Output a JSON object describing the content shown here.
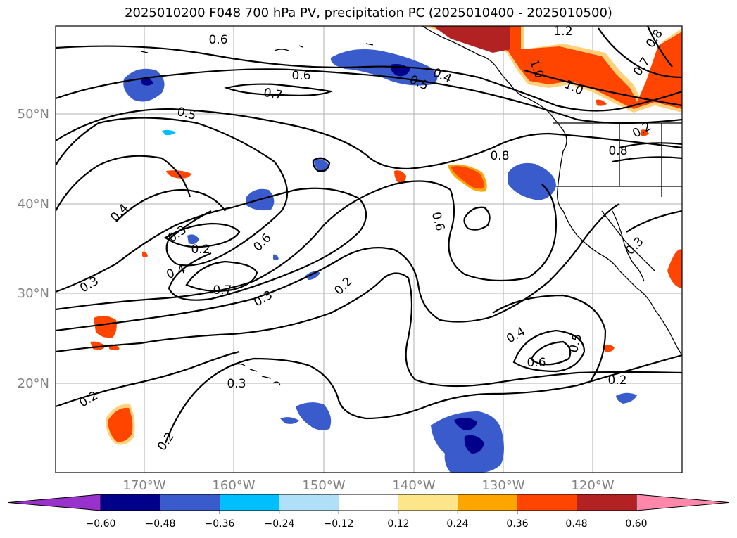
{
  "title": "2025010200 F048 700 hPa PV, precipitation PC (2025010400 - 2025010500)",
  "lat_labels": [
    "50°N",
    "40°N",
    "30°N",
    "20°N"
  ],
  "lon_labels": [
    "170°W",
    "160°W",
    "150°W",
    "140°W",
    "130°W",
    "120°W"
  ],
  "colorbar": {
    "ticks": [
      "−0.60",
      "−0.48",
      "−0.36",
      "−0.24",
      "−0.12",
      "0.12",
      "0.24",
      "0.36",
      "0.48",
      "0.60"
    ],
    "colors": [
      "#9932cc",
      "#00008b",
      "#3a5bcc",
      "#00bfff",
      "#b0e0f8",
      "#ffffff",
      "#fde68a",
      "#ffa500",
      "#ff4500",
      "#b22222",
      "#ff88aa"
    ]
  },
  "contour_labels": [
    "0.6",
    "1.2",
    "0.8",
    "0.6",
    "0.5",
    "0.4",
    "0.7",
    "1.0",
    "1.0",
    "0.5",
    "0.7",
    "0.8",
    "0.8",
    "0.2",
    "0.4",
    "0.3",
    "0.2",
    "0.6",
    "0.4",
    "0.3",
    "0.7",
    "0.3",
    "0.2",
    "0.6",
    "0.3",
    "0.4",
    "0.6",
    "0.5",
    "0.2",
    "0.3",
    "0.2",
    "0.2"
  ],
  "colors": {
    "grid": "#b0b0b0",
    "contour": "#000000",
    "axis_labels": "#808080"
  }
}
